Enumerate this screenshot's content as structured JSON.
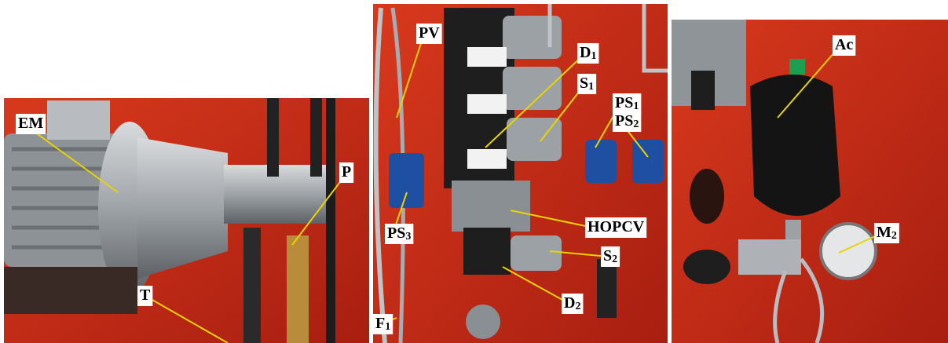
{
  "labels": [
    {
      "text": "EM"
    },
    {
      "text": "P"
    },
    {
      "text": "T"
    },
    {
      "text": "PV"
    },
    {
      "text": "D",
      "sub": "1"
    },
    {
      "text": "S",
      "sub": "1"
    },
    {
      "text": "PS",
      "sub": "1"
    },
    {
      "text": "PS",
      "sub": "2"
    },
    {
      "text": "HOPCV"
    },
    {
      "text": "PS",
      "sub": "3"
    },
    {
      "text": "S",
      "sub": "2"
    },
    {
      "text": "D",
      "sub": "2"
    },
    {
      "text": "F",
      "sub": "1"
    },
    {
      "text": "Ac"
    },
    {
      "text": "M",
      "sub": "2"
    }
  ]
}
